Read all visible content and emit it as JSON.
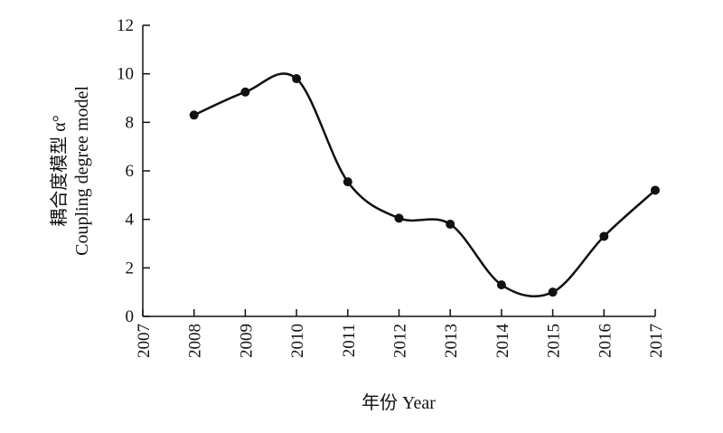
{
  "chart_data": {
    "type": "line",
    "x": [
      2008,
      2009,
      2010,
      2011,
      2012,
      2013,
      2014,
      2015,
      2016,
      2017
    ],
    "series": [
      {
        "values": [
          8.3,
          9.25,
          9.8,
          5.55,
          4.05,
          3.8,
          1.3,
          1.0,
          3.3,
          5.2
        ]
      }
    ],
    "xlim": [
      2007,
      2017
    ],
    "ylim": [
      0,
      12
    ],
    "x_ticks": [
      "2007",
      "2008",
      "2009",
      "2010",
      "2011",
      "2012",
      "2013",
      "2014",
      "2015",
      "2016",
      "2017"
    ],
    "y_ticks": [
      "0",
      "2",
      "4",
      "6",
      "8",
      "10",
      "12"
    ],
    "xlabel": "年份 Year",
    "ylabel_line1": "耦合度模型 α°",
    "ylabel_line2": "Coupling degree model",
    "smooth": true,
    "markers": "filled-circle",
    "grid": false,
    "line_color": "#111111"
  }
}
